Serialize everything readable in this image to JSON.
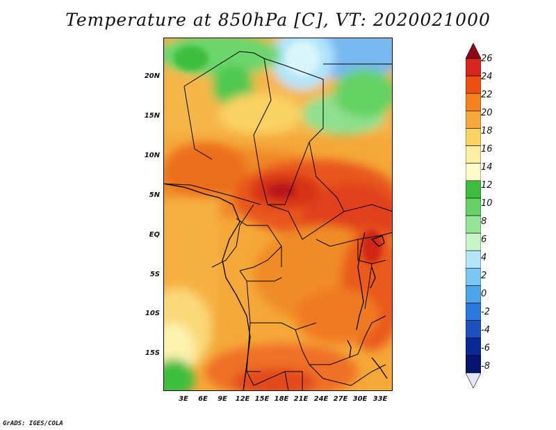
{
  "title": "Temperature at 850hPa [C], VT: 2020021000",
  "credit": "GrADS: IGES/COLA",
  "map": {
    "lat_labels": [
      "20N",
      "15N",
      "10N",
      "5N",
      "EQ",
      "5S",
      "10S",
      "15S"
    ],
    "lon_labels": [
      "3E",
      "6E",
      "9E",
      "12E",
      "15E",
      "18E",
      "21E",
      "24E",
      "27E",
      "30E",
      "33E"
    ],
    "lat_range": [
      -20,
      25
    ],
    "lon_range": [
      0,
      35
    ],
    "region": "Central Africa"
  },
  "colorbar": {
    "labels": [
      "26",
      "24",
      "22",
      "20",
      "18",
      "16",
      "14",
      "12",
      "10",
      "8",
      "6",
      "4",
      "2",
      "0",
      "-2",
      "-4",
      "-6",
      "-8"
    ],
    "colors": [
      "#8c0a14",
      "#d8261e",
      "#f0500f",
      "#f4821e",
      "#f6a83a",
      "#fad164",
      "#fdeea0",
      "#fefcc8",
      "#3cbe3c",
      "#64d264",
      "#96e696",
      "#c8f5c8",
      "#b4e6fa",
      "#78c8f5",
      "#4ba5eb",
      "#2d78dc",
      "#1e50be",
      "#0a2896",
      "#05146e",
      "#e6e6fa"
    ]
  }
}
